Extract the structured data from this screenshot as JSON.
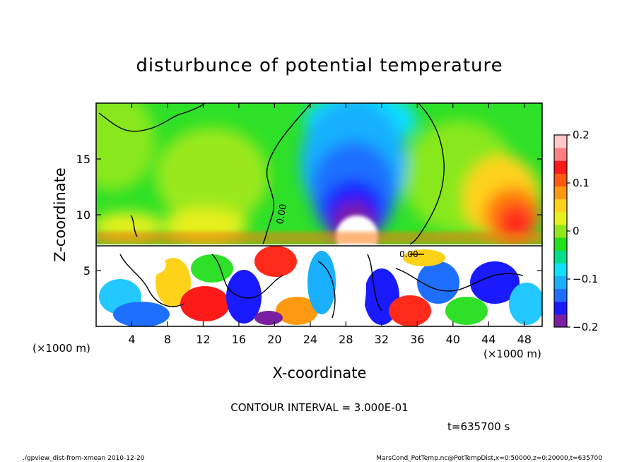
{
  "chart_data": {
    "type": "heatmap",
    "title": "disturbunce of potential temperature",
    "xlabel": "X-coordinate",
    "ylabel": "Z-coordinate",
    "x_unit_left": "(×1000 m)",
    "x_unit_right": "(×1000 m)",
    "xlim": [
      0,
      50
    ],
    "ylim": [
      0,
      20
    ],
    "x_ticks": [
      4,
      8,
      12,
      16,
      20,
      24,
      28,
      32,
      36,
      40,
      44,
      48
    ],
    "y_ticks": [
      5,
      10,
      15
    ],
    "colorbar": {
      "range": [
        -0.2,
        0.2
      ],
      "ticks": [
        {
          "value": 0.2,
          "label": "0.2"
        },
        {
          "value": 0.1,
          "label": "0.1"
        },
        {
          "value": 0,
          "label": "0"
        },
        {
          "value": -0.1,
          "label": "−0.1"
        },
        {
          "value": -0.2,
          "label": "−0.2"
        }
      ],
      "colors": [
        "#7b1fa2",
        "#1a1aff",
        "#1f6fff",
        "#18b0ff",
        "#10e0ff",
        "#00e08a",
        "#22e01a",
        "#90e81a",
        "#e6f01a",
        "#ffd21a",
        "#ff9a10",
        "#ff5a10",
        "#ff1a1a",
        "#ff8080",
        "#ffc8c8"
      ]
    },
    "contour_labels": [
      "0.00",
      "0.00"
    ],
    "contour_interval_text": "CONTOUR INTERVAL = 3.000E-01",
    "time_text": "t=635700 s"
  },
  "footer": {
    "left": "./gpview_dist-from-xmean  2010-12-20",
    "right": "MarsCond_PotTemp.nc@PotTempDist,x=0:50000,z=0:20000,t=635700"
  }
}
